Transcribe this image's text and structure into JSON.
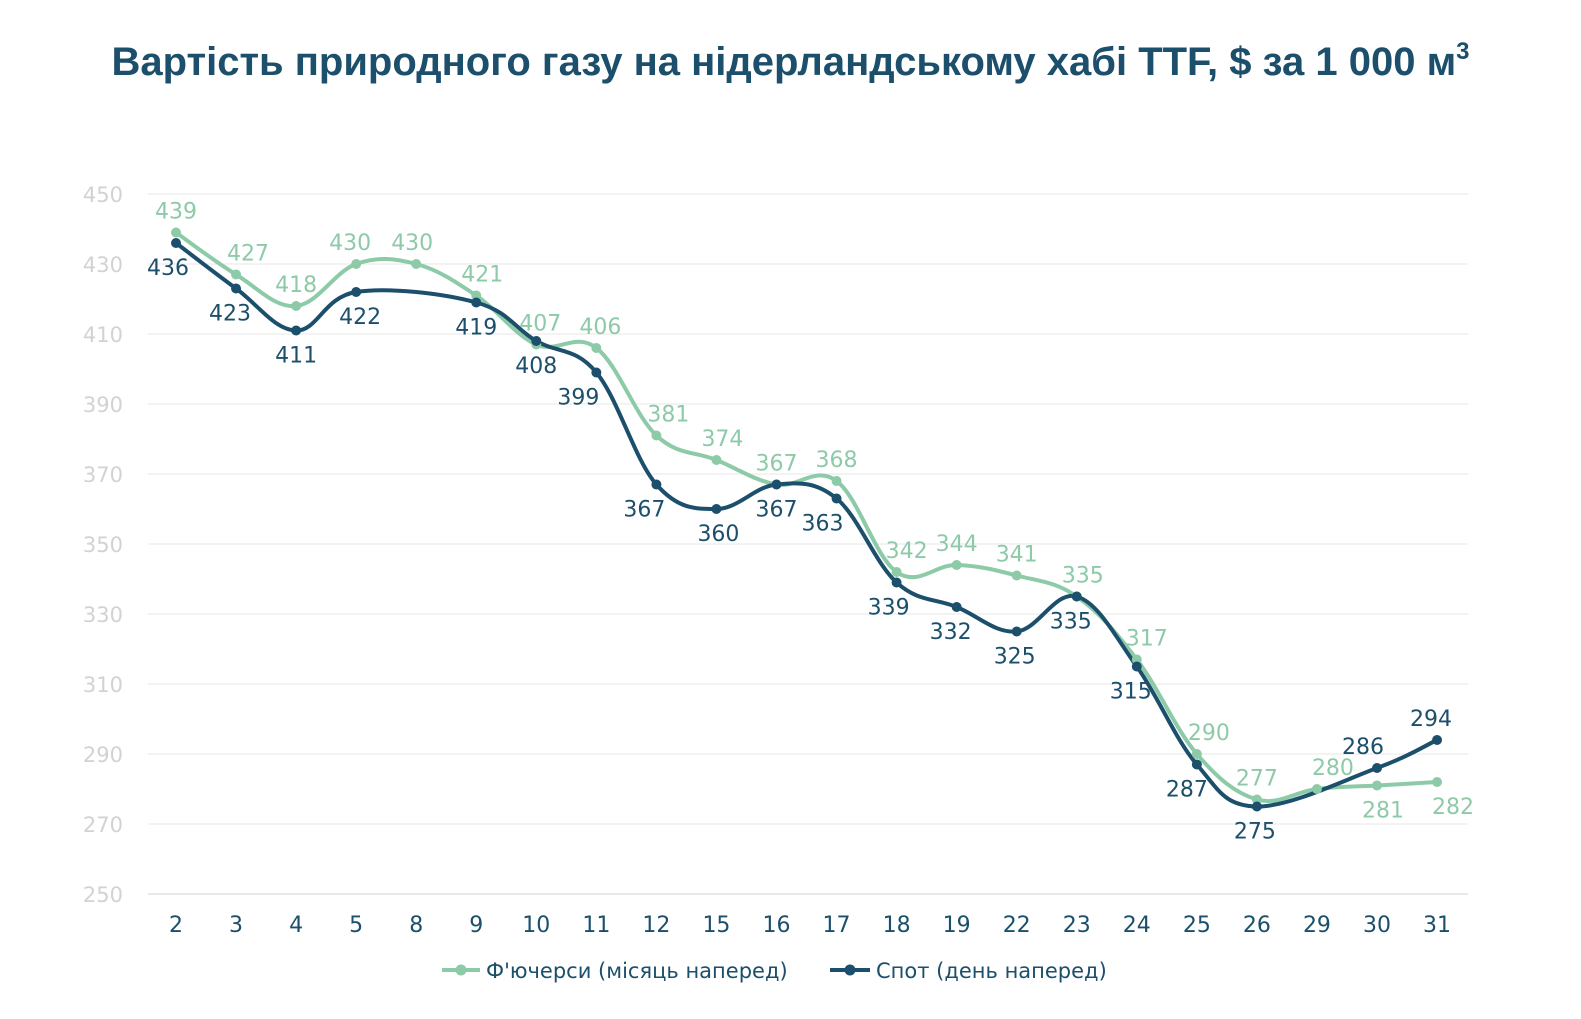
{
  "title": "Вартість природного газу на нідерландському хабі TTF, $ за 1 000 м",
  "title_sup": "3",
  "chart_data": {
    "type": "line",
    "x": [
      "2",
      "3",
      "4",
      "5",
      "8",
      "9",
      "10",
      "11",
      "12",
      "15",
      "16",
      "17",
      "18",
      "19",
      "22",
      "23",
      "24",
      "25",
      "26",
      "29",
      "30",
      "31"
    ],
    "ylim": [
      250,
      450
    ],
    "yticks": [
      250,
      270,
      290,
      310,
      330,
      350,
      370,
      390,
      410,
      430,
      450
    ],
    "grid": true,
    "legend_position": "bottom",
    "series": [
      {
        "name": "Ф'ючерси (місяць наперед)",
        "color": "#8dcaa8",
        "values": [
          439,
          427,
          418,
          430,
          430,
          421,
          407,
          406,
          381,
          374,
          367,
          368,
          342,
          344,
          341,
          335,
          317,
          290,
          277,
          280,
          281,
          282
        ],
        "labels": [
          "439",
          "427",
          "418",
          "430",
          "430",
          "421",
          "407",
          "406",
          "381",
          "374",
          "367",
          "368",
          "342",
          "344",
          "341",
          "335",
          "317",
          "290",
          "277",
          "280",
          "281",
          "282"
        ]
      },
      {
        "name": "Спот (день наперед)",
        "color": "#1b4f6b",
        "values": [
          436,
          423,
          411,
          422,
          null,
          419,
          408,
          399,
          367,
          360,
          367,
          363,
          339,
          332,
          325,
          335,
          315,
          287,
          275,
          null,
          286,
          294
        ],
        "labels": [
          "436",
          "423",
          "411",
          "422",
          "",
          "419",
          "408",
          "399",
          "367",
          "360",
          "367",
          "363",
          "339",
          "332",
          "325",
          "335",
          "315",
          "287",
          "275",
          "",
          "286",
          "294"
        ]
      }
    ]
  }
}
